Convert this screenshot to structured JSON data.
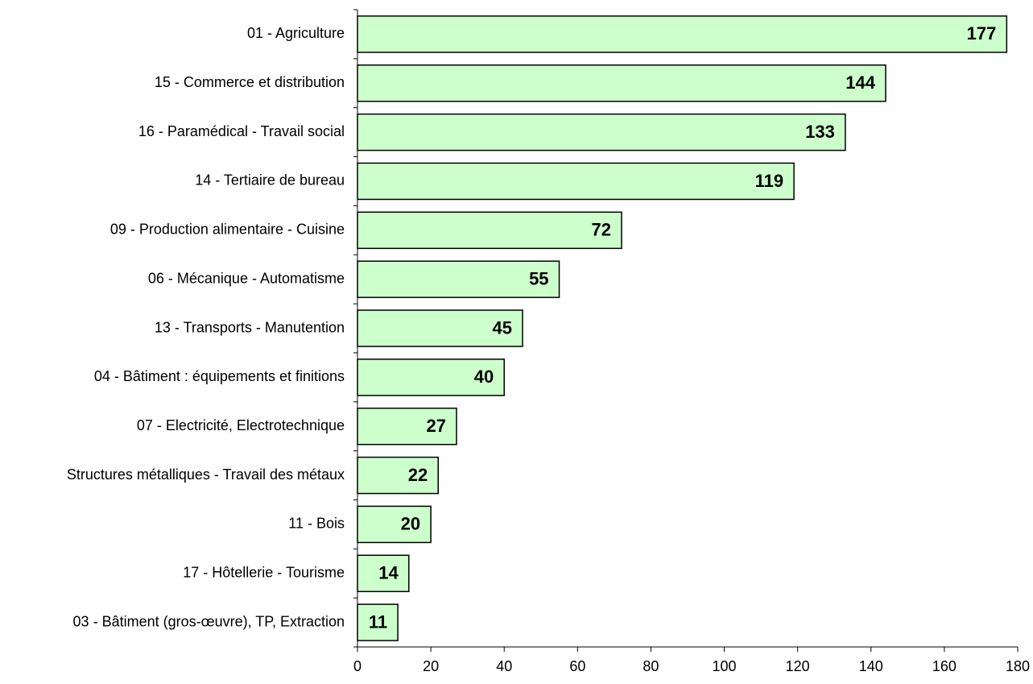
{
  "chart_data": {
    "type": "bar",
    "orientation": "horizontal",
    "categories": [
      "01 - Agriculture",
      "15 - Commerce et distribution",
      "16 - Paramédical - Travail social",
      "14 - Tertiaire de bureau",
      "09 - Production alimentaire - Cuisine",
      "06 - Mécanique - Automatisme",
      "13 - Transports - Manutention",
      "04 - Bâtiment : équipements et finitions",
      "07 - Electricité, Electrotechnique",
      "Structures métalliques - Travail des métaux",
      "11 - Bois",
      "17 - Hôtellerie - Tourisme",
      "03 - Bâtiment (gros-œuvre), TP, Extraction"
    ],
    "values": [
      177,
      144,
      133,
      119,
      72,
      55,
      45,
      40,
      27,
      22,
      20,
      14,
      11
    ],
    "xlim": [
      0,
      180
    ],
    "xticks": [
      0,
      20,
      40,
      60,
      80,
      100,
      120,
      140,
      160,
      180
    ],
    "grid": false,
    "legend": "none",
    "colors": {
      "bar_fill": "#ccffcc",
      "bar_stroke": "#000000",
      "axis": "#000000"
    }
  }
}
